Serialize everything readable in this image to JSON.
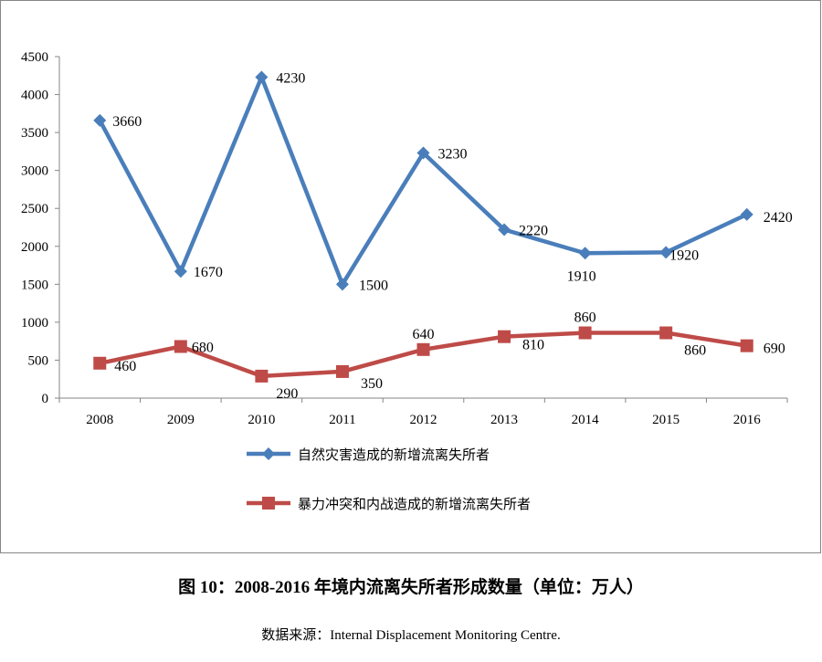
{
  "chart_data": {
    "type": "line",
    "categories": [
      "2008",
      "2009",
      "2010",
      "2011",
      "2012",
      "2013",
      "2014",
      "2015",
      "2016"
    ],
    "series": [
      {
        "name": "自然灾害造成的新增流离失所者",
        "color": "#4a7ebb",
        "marker": "diamond",
        "values": [
          3660,
          1670,
          4230,
          1500,
          3230,
          2220,
          1910,
          1920,
          2420
        ]
      },
      {
        "name": "暴力冲突和内战造成的新增流离失所者",
        "color": "#be4b48",
        "marker": "square",
        "values": [
          460,
          680,
          290,
          350,
          640,
          810,
          860,
          860,
          690
        ]
      }
    ],
    "yticks": [
      "0",
      "500",
      "1000",
      "1500",
      "2000",
      "2500",
      "3000",
      "3500",
      "4000",
      "4500"
    ],
    "ylim": [
      0,
      4500
    ],
    "grid": false,
    "legend_position": "bottom"
  },
  "caption": "图 10：2008-2016 年境内流离失所者形成数量（单位：万人）",
  "source": "数据来源：Internal Displacement Monitoring Centre."
}
